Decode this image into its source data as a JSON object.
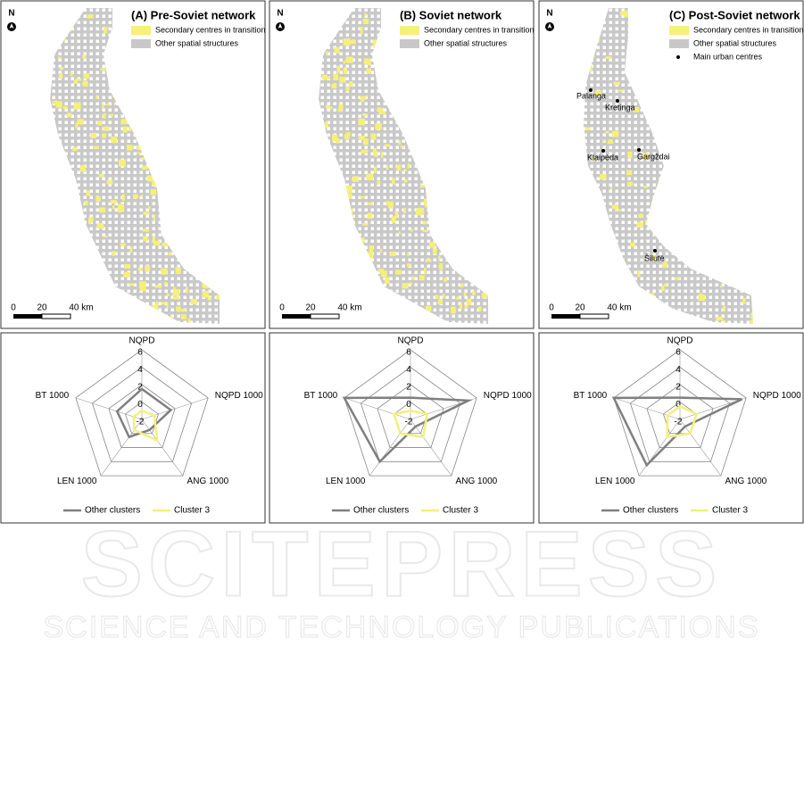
{
  "maps": [
    {
      "north": "N",
      "title": "(A) Pre-Soviet network",
      "legend": [
        {
          "label": "Secondary centres in transition",
          "color": "#f5f07a"
        },
        {
          "label": "Other spatial structures",
          "color": "#c8c8c8"
        }
      ],
      "scale": [
        "0",
        "20",
        "40 km"
      ],
      "cities": []
    },
    {
      "north": "N",
      "title": "(B) Soviet network",
      "legend": [
        {
          "label": "Secondary centres in transition",
          "color": "#f5f07a"
        },
        {
          "label": "Other spatial structures",
          "color": "#c8c8c8"
        }
      ],
      "scale": [
        "0",
        "20",
        "40 km"
      ],
      "cities": []
    },
    {
      "north": "N",
      "title": "(C) Post-Soviet network",
      "legend": [
        {
          "label": "Secondary centres in transition",
          "color": "#f5f07a"
        },
        {
          "label": "Other spatial structures",
          "color": "#c8c8c8"
        },
        {
          "label": "Main urban centres",
          "color": "#000000"
        }
      ],
      "scale": [
        "0",
        "20",
        "40 km"
      ],
      "cities": [
        "Palanga",
        "Kretinga",
        "Klaipėda",
        "Gargždai",
        "Šilutė"
      ]
    }
  ],
  "chart_data": [
    {
      "type": "radar",
      "categories": [
        "NQPD",
        "NQPD 1000",
        "ANG 1000",
        "LEN 1000",
        "BT 1000"
      ],
      "series": [
        {
          "name": "Other clusters",
          "color": "#7f7f7f",
          "values": [
            1.5,
            1.5,
            -0.5,
            0.5,
            1
          ]
        },
        {
          "name": "Cluster 3",
          "color": "#f2f07c",
          "values": [
            -1,
            -0.5,
            1,
            -0.5,
            -1
          ]
        }
      ],
      "ylim": [
        -2,
        6
      ],
      "yticks": [
        -2,
        0,
        2,
        4,
        6
      ]
    },
    {
      "type": "radar",
      "categories": [
        "NQPD",
        "NQPD 1000",
        "ANG 1000",
        "LEN 1000",
        "BT 1000"
      ],
      "series": [
        {
          "name": "Other clusters",
          "color": "#7f7f7f",
          "values": [
            0.5,
            5,
            -1,
            4,
            6
          ]
        },
        {
          "name": "Cluster 3",
          "color": "#f2f07c",
          "values": [
            -1,
            0,
            0.5,
            0,
            0
          ]
        }
      ],
      "ylim": [
        -2,
        6
      ],
      "yticks": [
        -2,
        0,
        2,
        4,
        6
      ]
    },
    {
      "type": "radar",
      "categories": [
        "NQPD",
        "NQPD 1000",
        "ANG 1000",
        "LEN 1000",
        "BT 1000"
      ],
      "series": [
        {
          "name": "Other clusters",
          "color": "#7f7f7f",
          "values": [
            0.5,
            5.5,
            -1,
            4.5,
            6
          ]
        },
        {
          "name": "Cluster 3",
          "color": "#f2f07c",
          "values": [
            -0.5,
            0,
            0,
            0.5,
            -0.5
          ]
        }
      ],
      "ylim": [
        -2,
        6
      ],
      "yticks": [
        -2,
        0,
        2,
        4,
        6
      ]
    }
  ],
  "watermark": {
    "line1": "SCITEPRESS",
    "line2": "SCIENCE AND TECHNOLOGY PUBLICATIONS"
  }
}
